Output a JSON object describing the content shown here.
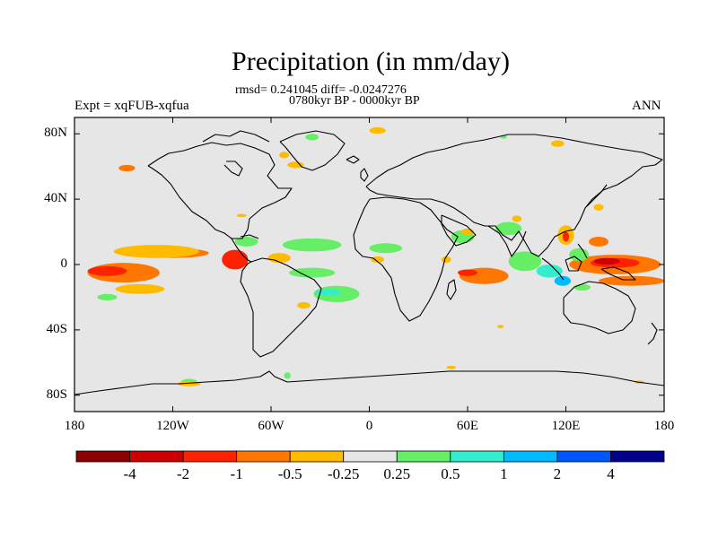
{
  "title": "Precipitation (in mm/day)",
  "stats_line": "rmsd= 0.241045 diff= -0.0247276",
  "period_line": "0780kyr BP - 0000kyr BP",
  "experiment_label": "Expt = xqFUB-xqfua",
  "season_label": "ANN",
  "map": {
    "projection": "cylindrical equidistant",
    "lon_range": [
      -180,
      180
    ],
    "lat_range": [
      -90,
      90
    ],
    "background_color": "#e6e6e6",
    "coastline_color": "#000000",
    "lat_ticks": [
      {
        "value": 80,
        "label": "80N"
      },
      {
        "value": 40,
        "label": "40N"
      },
      {
        "value": 0,
        "label": "0"
      },
      {
        "value": -40,
        "label": "40S"
      },
      {
        "value": -80,
        "label": "80S"
      }
    ],
    "lon_ticks": [
      {
        "value": -180,
        "label": "180"
      },
      {
        "value": -120,
        "label": "120W"
      },
      {
        "value": -60,
        "label": "60W"
      },
      {
        "value": 0,
        "label": "0"
      },
      {
        "value": 60,
        "label": "60E"
      },
      {
        "value": 120,
        "label": "120E"
      },
      {
        "value": 180,
        "label": "180"
      }
    ]
  },
  "colorbar": {
    "colors": [
      "#8b0000",
      "#cc0000",
      "#ff2200",
      "#ff7700",
      "#ffbb00",
      "#e6e6e6",
      "#66ee66",
      "#33eecc",
      "#00bbff",
      "#0055ff",
      "#000088"
    ],
    "labels": [
      "-4",
      "-2",
      "-1",
      "-0.5",
      "-0.25",
      "0.25",
      "0.5",
      "1",
      "2",
      "4"
    ]
  },
  "anomalies": [
    {
      "name": "central-pacific-drying",
      "lon": -150,
      "lat": -5,
      "rx": 22,
      "ry": 6,
      "color": "#ff7700"
    },
    {
      "name": "central-pacific-core",
      "lon": -160,
      "lat": -4,
      "rx": 12,
      "ry": 3,
      "color": "#ff2200"
    },
    {
      "name": "east-pacific-itcz-drying",
      "lon": -120,
      "lat": 7,
      "rx": 22,
      "ry": 3,
      "color": "#ff7700"
    },
    {
      "name": "east-pacific-itcz-edge",
      "lon": -130,
      "lat": 8,
      "rx": 26,
      "ry": 4,
      "color": "#ffbb00"
    },
    {
      "name": "south-pacific-band",
      "lon": -140,
      "lat": -15,
      "rx": 15,
      "ry": 3,
      "color": "#ffbb00"
    },
    {
      "name": "south-pacific-wet",
      "lon": -160,
      "lat": -20,
      "rx": 6,
      "ry": 2,
      "color": "#66ee66"
    },
    {
      "name": "panama-drying",
      "lon": -82,
      "lat": 3,
      "rx": 8,
      "ry": 6,
      "color": "#ff2200"
    },
    {
      "name": "caribbean-wet",
      "lon": -75,
      "lat": 14,
      "rx": 7,
      "ry": 3,
      "color": "#66ee66"
    },
    {
      "name": "amazon-drying",
      "lon": -55,
      "lat": 4,
      "rx": 7,
      "ry": 3,
      "color": "#ffbb00"
    },
    {
      "name": "atlantic-itcz-wet",
      "lon": -35,
      "lat": 12,
      "rx": 18,
      "ry": 4,
      "color": "#66ee66"
    },
    {
      "name": "atlantic-south-wet",
      "lon": -35,
      "lat": -5,
      "rx": 14,
      "ry": 3,
      "color": "#66ee66"
    },
    {
      "name": "south-atlantic-wet",
      "lon": -20,
      "lat": -18,
      "rx": 14,
      "ry": 5,
      "color": "#66ee66"
    },
    {
      "name": "south-atlantic-core",
      "lon": -25,
      "lat": -17,
      "rx": 8,
      "ry": 2,
      "color": "#33eecc"
    },
    {
      "name": "africa-sahel-wet",
      "lon": 10,
      "lat": 10,
      "rx": 10,
      "ry": 3,
      "color": "#66ee66"
    },
    {
      "name": "gulf-guinea-dry",
      "lon": 5,
      "lat": 3,
      "rx": 4,
      "ry": 2,
      "color": "#ffbb00"
    },
    {
      "name": "arabian-sea-wet",
      "lon": 57,
      "lat": 17,
      "rx": 7,
      "ry": 4,
      "color": "#66ee66"
    },
    {
      "name": "arabian-sea-dry",
      "lon": 60,
      "lat": 20,
      "rx": 4,
      "ry": 2,
      "color": "#ffbb00"
    },
    {
      "name": "west-indian-ocean-drying",
      "lon": 70,
      "lat": -7,
      "rx": 15,
      "ry": 5,
      "color": "#ff7700"
    },
    {
      "name": "west-indian-ocean-core",
      "lon": 60,
      "lat": -5,
      "rx": 6,
      "ry": 2,
      "color": "#ff2200"
    },
    {
      "name": "east-indian-ocean-wet",
      "lon": 95,
      "lat": 2,
      "rx": 10,
      "ry": 6,
      "color": "#66ee66"
    },
    {
      "name": "sumatra-wet",
      "lon": 110,
      "lat": -4,
      "rx": 8,
      "ry": 4,
      "color": "#33eecc"
    },
    {
      "name": "maritime-continent-blue",
      "lon": 118,
      "lat": -10,
      "rx": 5,
      "ry": 3,
      "color": "#00bbff"
    },
    {
      "name": "warm-pool-drying",
      "lon": 150,
      "lat": 0,
      "rx": 28,
      "ry": 6,
      "color": "#ff7700"
    },
    {
      "name": "warm-pool-strong",
      "lon": 150,
      "lat": 1,
      "rx": 15,
      "ry": 3,
      "color": "#ff2200"
    },
    {
      "name": "warm-pool-core",
      "lon": 145,
      "lat": 2,
      "rx": 8,
      "ry": 2,
      "color": "#cc0000"
    },
    {
      "name": "south-west-pacific-drying",
      "lon": 160,
      "lat": -10,
      "rx": 20,
      "ry": 3,
      "color": "#ff7700"
    },
    {
      "name": "northwest-pacific-wet",
      "lon": 128,
      "lat": 6,
      "rx": 6,
      "ry": 4,
      "color": "#66ee66"
    },
    {
      "name": "philippine-sea-drying",
      "lon": 140,
      "lat": 14,
      "rx": 6,
      "ry": 3,
      "color": "#ff7700"
    },
    {
      "name": "south-china-sea-drying",
      "lon": 120,
      "lat": 18,
      "rx": 5,
      "ry": 6,
      "color": "#ffbb00"
    },
    {
      "name": "south-china-sea-core",
      "lon": 120,
      "lat": 17,
      "rx": 2,
      "ry": 3,
      "color": "#ff2200"
    },
    {
      "name": "bay-of-bengal-wet",
      "lon": 85,
      "lat": 22,
      "rx": 8,
      "ry": 4,
      "color": "#66ee66"
    },
    {
      "name": "himalaya-dry",
      "lon": 90,
      "lat": 28,
      "rx": 3,
      "ry": 2,
      "color": "#ffbb00"
    },
    {
      "name": "alaska-drying",
      "lon": -148,
      "lat": 59,
      "rx": 5,
      "ry": 2,
      "color": "#ff7700"
    },
    {
      "name": "greenland-south-dry",
      "lon": -45,
      "lat": 61,
      "rx": 5,
      "ry": 2,
      "color": "#ffbb00"
    },
    {
      "name": "greenland-west-dry",
      "lon": -52,
      "lat": 67,
      "rx": 3,
      "ry": 2,
      "color": "#ffbb00"
    },
    {
      "name": "greenland-north-wet",
      "lon": -35,
      "lat": 78,
      "rx": 4,
      "ry": 2,
      "color": "#66ee66"
    },
    {
      "name": "barents-sea-dry",
      "lon": 5,
      "lat": 82,
      "rx": 5,
      "ry": 2,
      "color": "#ffbb00"
    },
    {
      "name": "arctic-siberia-dry",
      "lon": 115,
      "lat": 74,
      "rx": 4,
      "ry": 2,
      "color": "#ffbb00"
    },
    {
      "name": "arctic-center-wet",
      "lon": 82,
      "lat": 78,
      "rx": 2,
      "ry": 1,
      "color": "#66ee66"
    },
    {
      "name": "east-asia-dry",
      "lon": 140,
      "lat": 35,
      "rx": 3,
      "ry": 2,
      "color": "#ffbb00"
    },
    {
      "name": "gulf-of-mexico-dry",
      "lon": -78,
      "lat": 30,
      "rx": 3,
      "ry": 1,
      "color": "#ffbb00"
    },
    {
      "name": "north-africa-dry",
      "lon": 47,
      "lat": 3,
      "rx": 3,
      "ry": 2,
      "color": "#ffbb00"
    },
    {
      "name": "southern-ocean-dry-1",
      "lon": 50,
      "lat": -63,
      "rx": 3,
      "ry": 1,
      "color": "#ffbb00"
    },
    {
      "name": "southern-ocean-dry-2",
      "lon": 165,
      "lat": -72,
      "rx": 3,
      "ry": 1,
      "color": "#ffbb00"
    },
    {
      "name": "antarctic-coast-wet",
      "lon": -110,
      "lat": -72,
      "rx": 5,
      "ry": 2,
      "color": "#66ee66"
    },
    {
      "name": "antarctic-coast-dry",
      "lon": -110,
      "lat": -73,
      "rx": 7,
      "ry": 1.5,
      "color": "#ffbb00"
    },
    {
      "name": "ross-sea-wet",
      "lon": -50,
      "lat": -68,
      "rx": 2,
      "ry": 2,
      "color": "#66ee66"
    },
    {
      "name": "south-america-dry",
      "lon": -40,
      "lat": -25,
      "rx": 4,
      "ry": 2,
      "color": "#ffbb00"
    },
    {
      "name": "indian-ocean-south-dry",
      "lon": 80,
      "lat": -38,
      "rx": 2,
      "ry": 1,
      "color": "#ffbb00"
    },
    {
      "name": "australia-north-wet",
      "lon": 130,
      "lat": -14,
      "rx": 5,
      "ry": 2,
      "color": "#66ee66"
    }
  ]
}
